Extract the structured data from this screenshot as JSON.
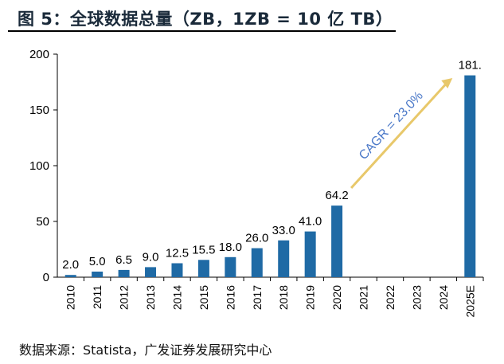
{
  "title": "图 5：全球数据总量（ZB，1ZB = 10 亿 TB）",
  "source": "数据来源：Statista，广发证券发展研究中心",
  "chart_data": {
    "type": "bar",
    "title": "",
    "xlabel": "",
    "ylabel": "",
    "ylim": [
      0,
      200
    ],
    "yticks": [
      "0",
      "50",
      "100",
      "150",
      "200"
    ],
    "categories": [
      "2010",
      "2011",
      "2012",
      "2013",
      "2014",
      "2015",
      "2016",
      "2017",
      "2018",
      "2019",
      "2020",
      "2021",
      "2022",
      "2023",
      "2024",
      "2025E"
    ],
    "values": [
      2.0,
      5.0,
      6.5,
      9.0,
      12.5,
      15.5,
      18.0,
      26.0,
      33.0,
      41.0,
      64.2,
      null,
      null,
      null,
      null,
      181
    ],
    "data_labels": [
      "2.0",
      "5.0",
      "6.5",
      "9.0",
      "12.5",
      "15.5",
      "18.0",
      "26.0",
      "33.0",
      "41.0",
      "64.2",
      "",
      "",
      "",
      "",
      "181."
    ],
    "bar_color": "#1f6aa5",
    "grid": false,
    "annotation": {
      "text": "CAGR = 23.0%",
      "text_color": "#4a78c8",
      "arrow_color": "#e8c86a",
      "from": "2020",
      "to": "2025E"
    }
  }
}
